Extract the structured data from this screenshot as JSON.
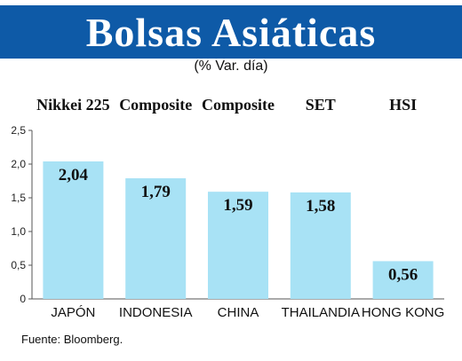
{
  "header": {
    "title": "Bolsas Asiáticas",
    "subtitle": "(% Var. día)"
  },
  "source": "Fuente: Bloomberg.",
  "colors": {
    "title_bar": "#0e5aa7",
    "bar": "#a8e2f5",
    "axis": "#555555"
  },
  "chart_data": {
    "type": "bar",
    "title": "Bolsas Asiáticas",
    "subtitle": "(% Var. día)",
    "categories": [
      "JAPÓN",
      "INDONESIA",
      "CHINA",
      "THAILANDIA",
      "HONG KONG"
    ],
    "index_names": [
      "Nikkei 225",
      "Composite",
      "Composite",
      "SET",
      "HSI"
    ],
    "values": [
      2.04,
      1.79,
      1.59,
      1.58,
      0.56
    ],
    "value_labels": [
      "2,04",
      "1,79",
      "1,59",
      "1,58",
      "0,56"
    ],
    "ylim": [
      0,
      2.5
    ],
    "yticks": [
      0,
      0.5,
      1.0,
      1.5,
      2.0,
      2.5
    ],
    "ytick_labels": [
      "0",
      "0,5",
      "1,0",
      "1,5",
      "2,0",
      "2,5"
    ],
    "grid": false,
    "legend": "none"
  }
}
